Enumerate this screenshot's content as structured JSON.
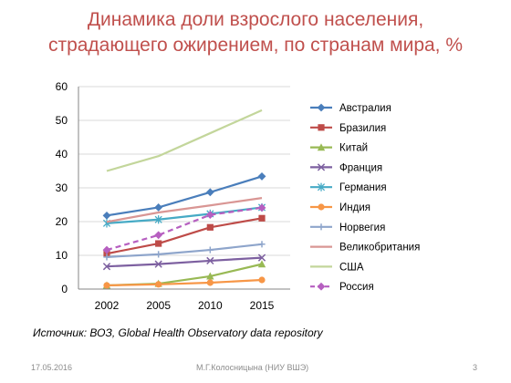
{
  "slide": {
    "title_line1": "Динамика доли взрослого населения,",
    "title_line2": "страдающего ожирением, по странам мира, %",
    "source": "Источник: ВОЗ, Global Health Observatory data repository",
    "footer_date": "17.05.2016",
    "footer_author": "М.Г.Колосницына (НИУ ВШЭ)",
    "footer_page": "3"
  },
  "chart_data": {
    "type": "line",
    "x": [
      "2002",
      "2005",
      "2010",
      "2015"
    ],
    "ylim": [
      0,
      60
    ],
    "yticks": [
      0,
      10,
      20,
      30,
      40,
      50,
      60
    ],
    "grid": "horizontal",
    "legend_position": "right",
    "series": [
      {
        "name": "Австралия",
        "values": [
          21.8,
          24.2,
          28.7,
          33.4
        ],
        "color": "#4A7EBB",
        "marker": "diamond",
        "dashed": false
      },
      {
        "name": "Бразилия",
        "values": [
          10.5,
          13.5,
          18.3,
          21.0
        ],
        "color": "#BE4B48",
        "marker": "square",
        "dashed": false
      },
      {
        "name": "Китай",
        "values": [
          1.1,
          1.6,
          3.8,
          7.4
        ],
        "color": "#98B954",
        "marker": "triangle",
        "dashed": false
      },
      {
        "name": "Франция",
        "values": [
          6.7,
          7.4,
          8.4,
          9.3
        ],
        "color": "#7D60A0",
        "marker": "x",
        "dashed": false
      },
      {
        "name": "Германия",
        "values": [
          19.5,
          20.6,
          22.3,
          24.2
        ],
        "color": "#46AAC5",
        "marker": "star",
        "dashed": false
      },
      {
        "name": "Индия",
        "values": [
          1.1,
          1.4,
          1.9,
          2.7
        ],
        "color": "#F79646",
        "marker": "circle",
        "dashed": false
      },
      {
        "name": "Норвегия",
        "values": [
          9.5,
          10.3,
          11.6,
          13.3
        ],
        "color": "#8EA5CB",
        "marker": "plus",
        "dashed": false
      },
      {
        "name": "Великобритания",
        "values": [
          19.9,
          22.7,
          24.8,
          27.0
        ],
        "color": "#D99694",
        "marker": "none",
        "dashed": false
      },
      {
        "name": "США",
        "values": [
          35.0,
          39.4,
          46.2,
          53.0
        ],
        "color": "#C3D69B",
        "marker": "none",
        "dashed": false
      },
      {
        "name": "Россия",
        "values": [
          11.6,
          16.0,
          22.0,
          24.1
        ],
        "color": "#B65FC0",
        "marker": "diamond",
        "dashed": true
      }
    ]
  }
}
